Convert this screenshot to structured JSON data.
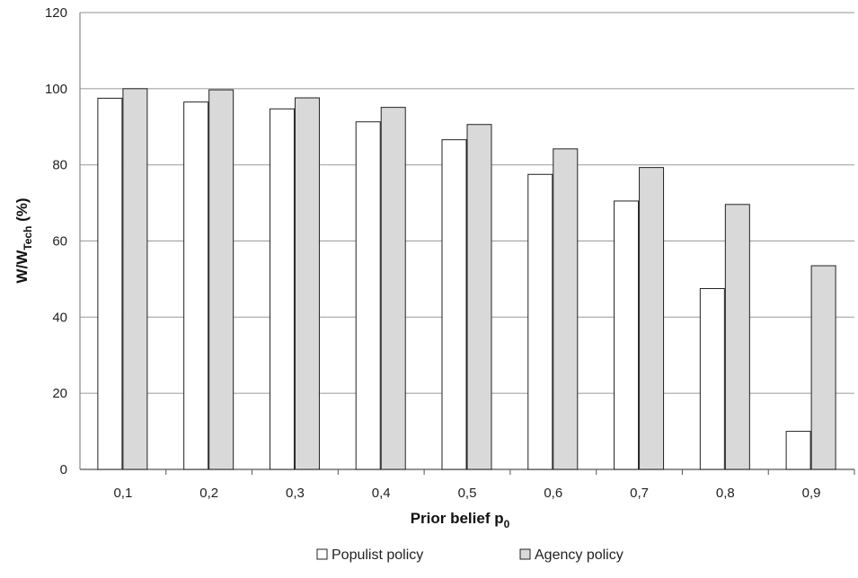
{
  "chart_data": {
    "type": "bar",
    "title": "",
    "categories": [
      "0,1",
      "0,2",
      "0,3",
      "0,4",
      "0,5",
      "0,6",
      "0,7",
      "0,8",
      "0,9"
    ],
    "series": [
      {
        "name": "Populist policy",
        "values": [
          97.5,
          96.5,
          94.7,
          91.3,
          86.6,
          77.5,
          70.5,
          47.5,
          10
        ],
        "color": "#ffffff"
      },
      {
        "name": "Agency policy",
        "values": [
          100,
          99.7,
          97.6,
          95.1,
          90.6,
          84.2,
          79.3,
          69.6,
          53.5
        ],
        "color": "#d9d9d9"
      }
    ],
    "ylim": [
      0,
      120
    ],
    "yticks": [
      0,
      20,
      40,
      60,
      80,
      100,
      120
    ],
    "xlabel": {
      "main": "Prior belief p",
      "sub": "0"
    },
    "ylabel": {
      "main": "W/W",
      "sub": "Tech",
      "unit": " (%)"
    },
    "grid": true,
    "legend_position": "bottom-center"
  }
}
